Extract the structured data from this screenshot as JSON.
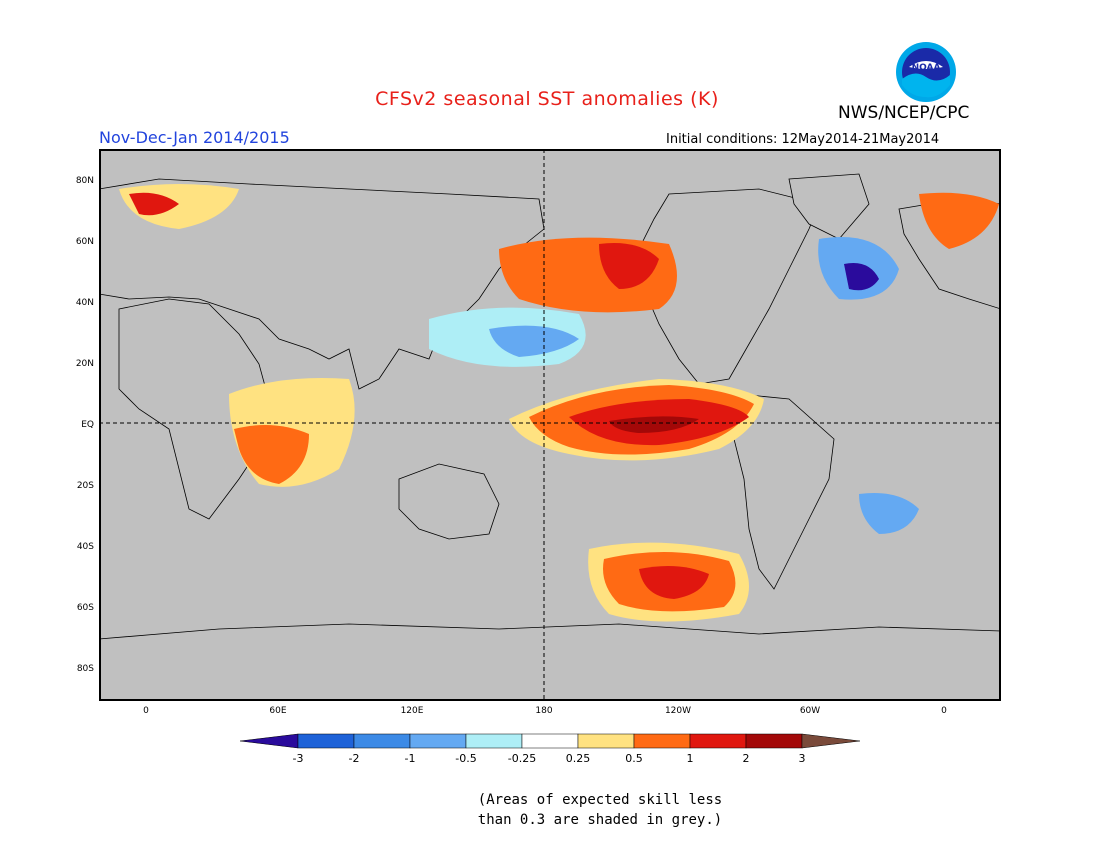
{
  "header": {
    "title": "CFSv2 seasonal SST anomalies (K)",
    "period": "Nov-Dec-Jan 2014/2015",
    "agency": "NWS/NCEP/CPC",
    "initial_conditions": "Initial conditions: 12May2014-21May2014",
    "logo_text": "NOAA"
  },
  "map": {
    "latitude_labels": [
      "80N",
      "60N",
      "40N",
      "20N",
      "EQ",
      "20S",
      "40S",
      "60S",
      "80S"
    ],
    "longitude_labels": [
      "0",
      "60E",
      "120E",
      "180",
      "120W",
      "60W",
      "0"
    ],
    "colors": {
      "skill_mask_grey": "#c0c0c0",
      "neutral": "#ffffff",
      "border": "#000000",
      "reference_lines": "#000000"
    }
  },
  "colorbar": {
    "labels": [
      "-3",
      "-2",
      "-1",
      "-0.5",
      "-0.25",
      "0.25",
      "0.5",
      "1",
      "2",
      "3"
    ],
    "colors": [
      "#2a0b9c",
      "#1e62d8",
      "#3c8ae6",
      "#64a9f2",
      "#aeeef6",
      "#ffffff",
      "#ffe281",
      "#ff6a14",
      "#e0170f",
      "#a30808",
      "#7a4a3a"
    ]
  },
  "footnote": {
    "line1": "(Areas of expected skill less",
    "line2": "than 0.3 are shaded in grey.)"
  }
}
